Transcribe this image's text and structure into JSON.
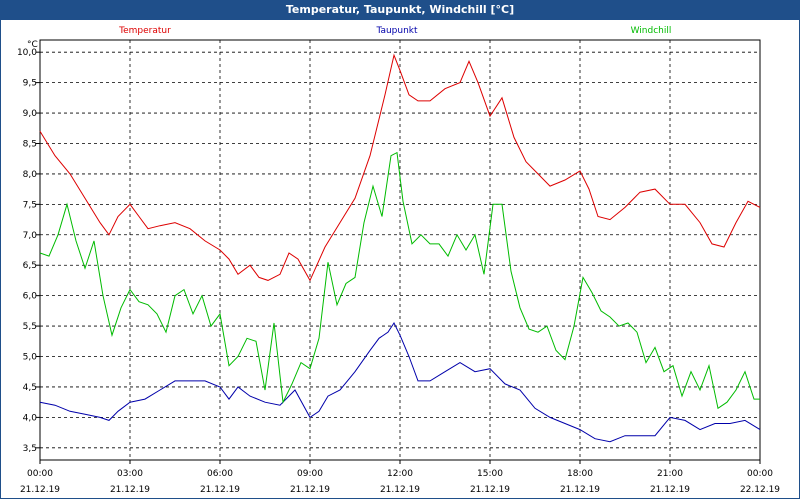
{
  "title": "Temperatur, Taupunkt, Windchill [°C]",
  "chart_data": {
    "type": "line",
    "title": "Temperatur, Taupunkt, Windchill [°C]",
    "ylabel": "°C",
    "ylim": [
      3.3,
      10.2
    ],
    "xlim": [
      0,
      24
    ],
    "grid": true,
    "y_ticks": [
      "3,5",
      "4,0",
      "4,5",
      "5,0",
      "5,5",
      "6,0",
      "6,5",
      "7,0",
      "7,5",
      "8,0",
      "8,5",
      "9,0",
      "9,5",
      "10,0"
    ],
    "x_ticks": [
      {
        "time": "00:00",
        "date": "21.12.19"
      },
      {
        "time": "03:00",
        "date": "21.12.19"
      },
      {
        "time": "06:00",
        "date": "21.12.19"
      },
      {
        "time": "09:00",
        "date": "21.12.19"
      },
      {
        "time": "12:00",
        "date": "21.12.19"
      },
      {
        "time": "15:00",
        "date": "21.12.19"
      },
      {
        "time": "18:00",
        "date": "21.12.19"
      },
      {
        "time": "21:00",
        "date": "21.12.19"
      },
      {
        "time": "00:00",
        "date": "22.12.19"
      }
    ],
    "series": [
      {
        "name": "Temperatur",
        "color": "#dd0000",
        "x": [
          0,
          0.5,
          1,
          1.5,
          2,
          2.3,
          2.6,
          3,
          3.3,
          3.6,
          4,
          4.5,
          5,
          5.5,
          6,
          6.3,
          6.6,
          7,
          7.3,
          7.6,
          8,
          8.3,
          8.6,
          9,
          9.5,
          10,
          10.5,
          11,
          11.5,
          11.8,
          12,
          12.3,
          12.6,
          13,
          13.5,
          14,
          14.3,
          14.6,
          15,
          15.4,
          15.8,
          16.2,
          16.6,
          17,
          17.5,
          18,
          18.3,
          18.6,
          19,
          19.5,
          20,
          20.5,
          21,
          21.5,
          22,
          22.4,
          22.8,
          23.2,
          23.6,
          24
        ],
        "y": [
          8.7,
          8.3,
          8.0,
          7.6,
          7.2,
          7.0,
          7.3,
          7.5,
          7.3,
          7.1,
          7.15,
          7.2,
          7.1,
          6.9,
          6.75,
          6.6,
          6.35,
          6.5,
          6.3,
          6.25,
          6.35,
          6.7,
          6.6,
          6.25,
          6.8,
          7.2,
          7.6,
          8.3,
          9.3,
          9.95,
          9.7,
          9.3,
          9.2,
          9.2,
          9.4,
          9.5,
          9.85,
          9.5,
          8.95,
          9.25,
          8.6,
          8.2,
          8.0,
          7.8,
          7.9,
          8.05,
          7.75,
          7.3,
          7.25,
          7.45,
          7.7,
          7.75,
          7.5,
          7.5,
          7.2,
          6.85,
          6.8,
          7.2,
          7.55,
          7.45
        ]
      },
      {
        "name": "Taupunkt",
        "color": "#0000aa",
        "x": [
          0,
          0.5,
          1,
          1.5,
          2,
          2.3,
          2.6,
          3,
          3.5,
          4,
          4.5,
          5,
          5.5,
          6,
          6.3,
          6.6,
          7,
          7.5,
          8,
          8.5,
          9,
          9.3,
          9.6,
          10,
          10.5,
          11,
          11.3,
          11.6,
          11.8,
          12,
          12.3,
          12.6,
          13,
          13.5,
          14,
          14.5,
          15,
          15.5,
          16,
          16.5,
          17,
          17.5,
          18,
          18.5,
          19,
          19.5,
          20,
          20.5,
          21,
          21.5,
          22,
          22.5,
          23,
          23.5,
          24
        ],
        "y": [
          4.25,
          4.2,
          4.1,
          4.05,
          4.0,
          3.95,
          4.1,
          4.25,
          4.3,
          4.45,
          4.6,
          4.6,
          4.6,
          4.5,
          4.3,
          4.5,
          4.35,
          4.25,
          4.2,
          4.45,
          4.0,
          4.1,
          4.35,
          4.45,
          4.75,
          5.1,
          5.3,
          5.4,
          5.55,
          5.35,
          5.0,
          4.6,
          4.6,
          4.75,
          4.9,
          4.75,
          4.8,
          4.55,
          4.45,
          4.15,
          4.0,
          3.9,
          3.8,
          3.65,
          3.6,
          3.7,
          3.7,
          3.7,
          4.0,
          3.95,
          3.8,
          3.9,
          3.9,
          3.95,
          3.8
        ]
      },
      {
        "name": "Windchill",
        "color": "#00bb00",
        "x": [
          0,
          0.3,
          0.6,
          0.9,
          1.2,
          1.5,
          1.8,
          2.1,
          2.4,
          2.7,
          3,
          3.3,
          3.6,
          3.9,
          4.2,
          4.5,
          4.8,
          5.1,
          5.4,
          5.7,
          6,
          6.3,
          6.6,
          6.9,
          7.2,
          7.5,
          7.8,
          8.1,
          8.4,
          8.7,
          9,
          9.3,
          9.6,
          9.9,
          10.2,
          10.5,
          10.8,
          11.1,
          11.4,
          11.7,
          11.9,
          12.1,
          12.4,
          12.7,
          13,
          13.3,
          13.6,
          13.9,
          14.2,
          14.5,
          14.8,
          15.1,
          15.4,
          15.7,
          16,
          16.3,
          16.6,
          16.9,
          17.2,
          17.5,
          17.8,
          18.1,
          18.4,
          18.7,
          19,
          19.3,
          19.6,
          19.9,
          20.2,
          20.5,
          20.8,
          21.1,
          21.4,
          21.7,
          22,
          22.3,
          22.6,
          22.9,
          23.2,
          23.5,
          23.8,
          24
        ],
        "y": [
          6.7,
          6.65,
          7.0,
          7.5,
          6.9,
          6.45,
          6.9,
          6.0,
          5.35,
          5.8,
          6.1,
          5.9,
          5.85,
          5.7,
          5.4,
          6.0,
          6.1,
          5.7,
          6.0,
          5.5,
          5.7,
          4.85,
          5.0,
          5.3,
          5.25,
          4.45,
          5.55,
          4.25,
          4.55,
          4.9,
          4.8,
          5.3,
          6.55,
          5.85,
          6.2,
          6.3,
          7.2,
          7.8,
          7.3,
          8.3,
          8.35,
          7.55,
          6.85,
          7.0,
          6.85,
          6.85,
          6.65,
          7.0,
          6.75,
          7.0,
          6.35,
          7.5,
          7.5,
          6.4,
          5.8,
          5.45,
          5.4,
          5.5,
          5.1,
          4.95,
          5.5,
          6.3,
          6.05,
          5.75,
          5.65,
          5.5,
          5.55,
          5.4,
          4.9,
          5.15,
          4.75,
          4.85,
          4.35,
          4.75,
          4.45,
          4.85,
          4.15,
          4.25,
          4.45,
          4.75,
          4.3,
          4.3
        ]
      }
    ]
  }
}
